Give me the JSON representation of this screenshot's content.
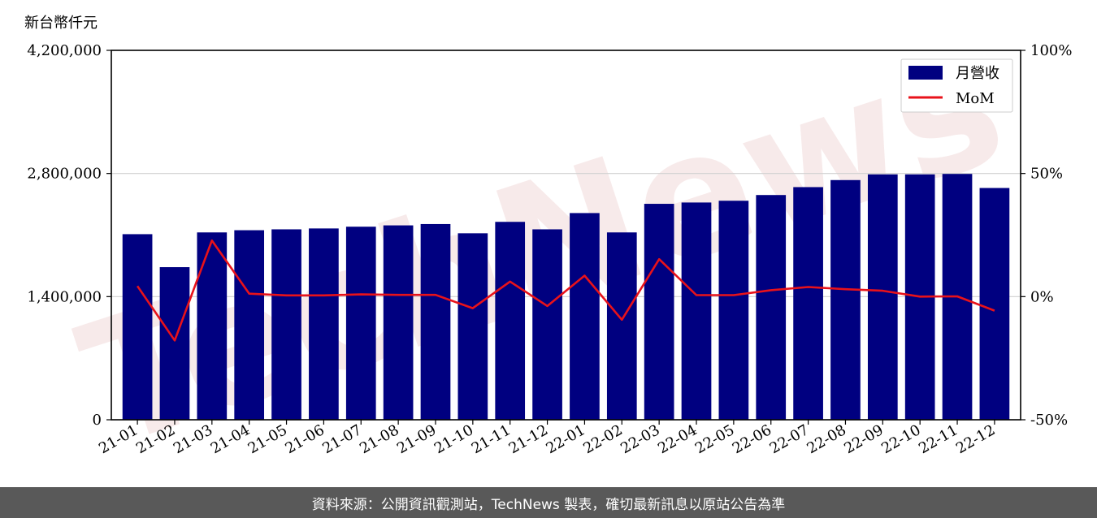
{
  "unit_label": "新台幣仟元",
  "watermark": "TechNews",
  "footer": "資料來源：公開資訊觀測站，TechNews 製表，確切最新訊息以原站公告為準",
  "colors": {
    "bar": "#000080",
    "line": "#e8121a",
    "footer_bg": "#595959",
    "watermark": "#f2d9d9"
  },
  "chart_data": {
    "type": "bar",
    "categories": [
      "21-01",
      "21-02",
      "21-03",
      "21-04",
      "21-05",
      "21-06",
      "21-07",
      "21-08",
      "21-09",
      "21-10",
      "21-11",
      "21-12",
      "22-01",
      "22-02",
      "22-03",
      "22-04",
      "22-05",
      "22-06",
      "22-07",
      "22-08",
      "22-09",
      "22-10",
      "22-11",
      "22-12"
    ],
    "series": [
      {
        "name": "月營收",
        "axis": "left",
        "type": "bar",
        "values": [
          2110000,
          1735000,
          2130000,
          2155000,
          2165000,
          2175000,
          2195000,
          2210000,
          2225000,
          2120000,
          2250000,
          2165000,
          2350000,
          2130000,
          2455000,
          2470000,
          2490000,
          2555000,
          2645000,
          2725000,
          2790000,
          2790000,
          2795000,
          2635000
        ]
      },
      {
        "name": "MoM",
        "axis": "right",
        "type": "line",
        "values": [
          4.3,
          -17.8,
          22.8,
          1.2,
          0.5,
          0.5,
          0.9,
          0.7,
          0.7,
          -4.7,
          6.1,
          -3.8,
          8.5,
          -9.4,
          15.2,
          0.6,
          0.6,
          2.6,
          3.9,
          3.0,
          2.4,
          0.0,
          0.1,
          -5.7
        ]
      }
    ],
    "left_axis": {
      "ylim": [
        0,
        4200000
      ],
      "ticks": [
        0,
        1400000,
        2800000,
        4200000
      ],
      "tick_labels": [
        "0",
        "1,400,000",
        "2,800,000",
        "4,200,000"
      ]
    },
    "right_axis": {
      "ylim": [
        -50,
        100
      ],
      "ticks": [
        -50,
        0,
        50,
        100
      ],
      "tick_labels": [
        "-50%",
        "0%",
        "50%",
        "100%"
      ]
    },
    "grid": "horizontal",
    "legend_position": "top-right"
  }
}
